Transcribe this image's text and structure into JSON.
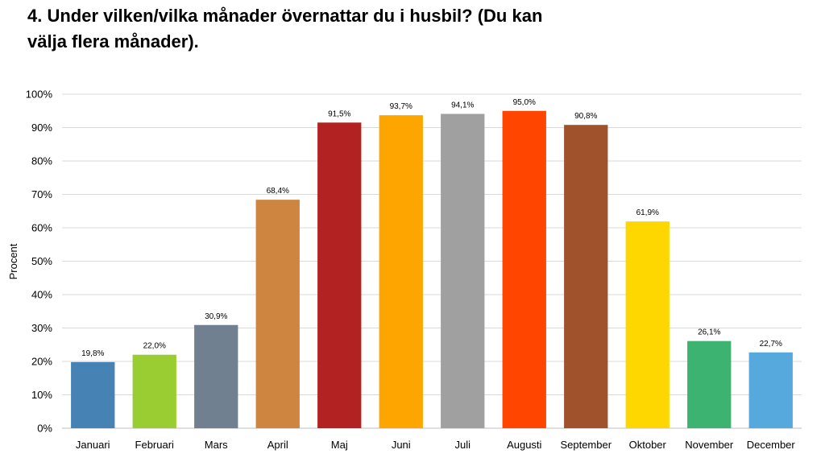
{
  "title_lines": [
    "4. Under vilken/vilka månader övernattar du i husbil? (Du kan",
    "välja flera månader)."
  ],
  "chart_data": {
    "type": "bar",
    "title": "4. Under vilken/vilka månader övernattar du i husbil? (Du kan välja flera månader).",
    "xlabel": "",
    "ylabel": "Procent",
    "ylim": [
      0,
      100
    ],
    "yticks": [
      0,
      10,
      20,
      30,
      40,
      50,
      60,
      70,
      80,
      90,
      100
    ],
    "ytick_labels": [
      "0%",
      "10%",
      "20%",
      "30%",
      "40%",
      "50%",
      "60%",
      "70%",
      "80%",
      "90%",
      "100%"
    ],
    "grid": true,
    "categories": [
      "Januari",
      "Februari",
      "Mars",
      "April",
      "Maj",
      "Juni",
      "Juli",
      "Augusti",
      "September",
      "Oktober",
      "November",
      "December"
    ],
    "values": [
      19.8,
      22.0,
      30.9,
      68.4,
      91.5,
      93.7,
      94.1,
      95.0,
      90.8,
      61.9,
      26.1,
      22.7
    ],
    "data_labels": [
      "19,8%",
      "22,0%",
      "30,9%",
      "68,4%",
      "91,5%",
      "93,7%",
      "94,1%",
      "95,0%",
      "90,8%",
      "61,9%",
      "26,1%",
      "22,7%"
    ],
    "colors": [
      "#4682B4",
      "#9ACD32",
      "#708090",
      "#CD853F",
      "#B22222",
      "#FFA500",
      "#A0A0A0",
      "#FF4500",
      "#A0522D",
      "#FFD700",
      "#3CB371",
      "#56A9DD"
    ]
  }
}
